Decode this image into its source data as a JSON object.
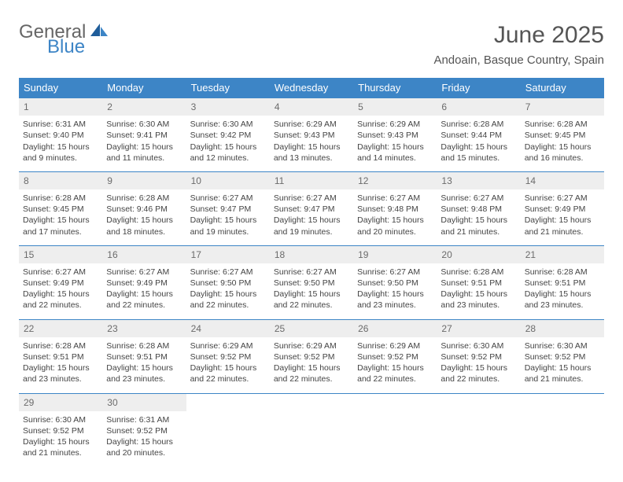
{
  "logo": {
    "word1": "General",
    "word2": "Blue"
  },
  "title": "June 2025",
  "location": "Andoain, Basque Country, Spain",
  "columns": [
    "Sunday",
    "Monday",
    "Tuesday",
    "Wednesday",
    "Thursday",
    "Friday",
    "Saturday"
  ],
  "colors": {
    "header_bg": "#3d85c6",
    "header_text": "#ffffff",
    "daynum_bg": "#eeeeee",
    "rule": "#3d85c6",
    "logo_blue": "#3d85c6",
    "logo_gray": "#666666"
  },
  "weeks": [
    [
      {
        "n": "1",
        "sr": "Sunrise: 6:31 AM",
        "ss": "Sunset: 9:40 PM",
        "d1": "Daylight: 15 hours",
        "d2": "and 9 minutes."
      },
      {
        "n": "2",
        "sr": "Sunrise: 6:30 AM",
        "ss": "Sunset: 9:41 PM",
        "d1": "Daylight: 15 hours",
        "d2": "and 11 minutes."
      },
      {
        "n": "3",
        "sr": "Sunrise: 6:30 AM",
        "ss": "Sunset: 9:42 PM",
        "d1": "Daylight: 15 hours",
        "d2": "and 12 minutes."
      },
      {
        "n": "4",
        "sr": "Sunrise: 6:29 AM",
        "ss": "Sunset: 9:43 PM",
        "d1": "Daylight: 15 hours",
        "d2": "and 13 minutes."
      },
      {
        "n": "5",
        "sr": "Sunrise: 6:29 AM",
        "ss": "Sunset: 9:43 PM",
        "d1": "Daylight: 15 hours",
        "d2": "and 14 minutes."
      },
      {
        "n": "6",
        "sr": "Sunrise: 6:28 AM",
        "ss": "Sunset: 9:44 PM",
        "d1": "Daylight: 15 hours",
        "d2": "and 15 minutes."
      },
      {
        "n": "7",
        "sr": "Sunrise: 6:28 AM",
        "ss": "Sunset: 9:45 PM",
        "d1": "Daylight: 15 hours",
        "d2": "and 16 minutes."
      }
    ],
    [
      {
        "n": "8",
        "sr": "Sunrise: 6:28 AM",
        "ss": "Sunset: 9:45 PM",
        "d1": "Daylight: 15 hours",
        "d2": "and 17 minutes."
      },
      {
        "n": "9",
        "sr": "Sunrise: 6:28 AM",
        "ss": "Sunset: 9:46 PM",
        "d1": "Daylight: 15 hours",
        "d2": "and 18 minutes."
      },
      {
        "n": "10",
        "sr": "Sunrise: 6:27 AM",
        "ss": "Sunset: 9:47 PM",
        "d1": "Daylight: 15 hours",
        "d2": "and 19 minutes."
      },
      {
        "n": "11",
        "sr": "Sunrise: 6:27 AM",
        "ss": "Sunset: 9:47 PM",
        "d1": "Daylight: 15 hours",
        "d2": "and 19 minutes."
      },
      {
        "n": "12",
        "sr": "Sunrise: 6:27 AM",
        "ss": "Sunset: 9:48 PM",
        "d1": "Daylight: 15 hours",
        "d2": "and 20 minutes."
      },
      {
        "n": "13",
        "sr": "Sunrise: 6:27 AM",
        "ss": "Sunset: 9:48 PM",
        "d1": "Daylight: 15 hours",
        "d2": "and 21 minutes."
      },
      {
        "n": "14",
        "sr": "Sunrise: 6:27 AM",
        "ss": "Sunset: 9:49 PM",
        "d1": "Daylight: 15 hours",
        "d2": "and 21 minutes."
      }
    ],
    [
      {
        "n": "15",
        "sr": "Sunrise: 6:27 AM",
        "ss": "Sunset: 9:49 PM",
        "d1": "Daylight: 15 hours",
        "d2": "and 22 minutes."
      },
      {
        "n": "16",
        "sr": "Sunrise: 6:27 AM",
        "ss": "Sunset: 9:49 PM",
        "d1": "Daylight: 15 hours",
        "d2": "and 22 minutes."
      },
      {
        "n": "17",
        "sr": "Sunrise: 6:27 AM",
        "ss": "Sunset: 9:50 PM",
        "d1": "Daylight: 15 hours",
        "d2": "and 22 minutes."
      },
      {
        "n": "18",
        "sr": "Sunrise: 6:27 AM",
        "ss": "Sunset: 9:50 PM",
        "d1": "Daylight: 15 hours",
        "d2": "and 22 minutes."
      },
      {
        "n": "19",
        "sr": "Sunrise: 6:27 AM",
        "ss": "Sunset: 9:50 PM",
        "d1": "Daylight: 15 hours",
        "d2": "and 23 minutes."
      },
      {
        "n": "20",
        "sr": "Sunrise: 6:28 AM",
        "ss": "Sunset: 9:51 PM",
        "d1": "Daylight: 15 hours",
        "d2": "and 23 minutes."
      },
      {
        "n": "21",
        "sr": "Sunrise: 6:28 AM",
        "ss": "Sunset: 9:51 PM",
        "d1": "Daylight: 15 hours",
        "d2": "and 23 minutes."
      }
    ],
    [
      {
        "n": "22",
        "sr": "Sunrise: 6:28 AM",
        "ss": "Sunset: 9:51 PM",
        "d1": "Daylight: 15 hours",
        "d2": "and 23 minutes."
      },
      {
        "n": "23",
        "sr": "Sunrise: 6:28 AM",
        "ss": "Sunset: 9:51 PM",
        "d1": "Daylight: 15 hours",
        "d2": "and 23 minutes."
      },
      {
        "n": "24",
        "sr": "Sunrise: 6:29 AM",
        "ss": "Sunset: 9:52 PM",
        "d1": "Daylight: 15 hours",
        "d2": "and 22 minutes."
      },
      {
        "n": "25",
        "sr": "Sunrise: 6:29 AM",
        "ss": "Sunset: 9:52 PM",
        "d1": "Daylight: 15 hours",
        "d2": "and 22 minutes."
      },
      {
        "n": "26",
        "sr": "Sunrise: 6:29 AM",
        "ss": "Sunset: 9:52 PM",
        "d1": "Daylight: 15 hours",
        "d2": "and 22 minutes."
      },
      {
        "n": "27",
        "sr": "Sunrise: 6:30 AM",
        "ss": "Sunset: 9:52 PM",
        "d1": "Daylight: 15 hours",
        "d2": "and 22 minutes."
      },
      {
        "n": "28",
        "sr": "Sunrise: 6:30 AM",
        "ss": "Sunset: 9:52 PM",
        "d1": "Daylight: 15 hours",
        "d2": "and 21 minutes."
      }
    ],
    [
      {
        "n": "29",
        "sr": "Sunrise: 6:30 AM",
        "ss": "Sunset: 9:52 PM",
        "d1": "Daylight: 15 hours",
        "d2": "and 21 minutes."
      },
      {
        "n": "30",
        "sr": "Sunrise: 6:31 AM",
        "ss": "Sunset: 9:52 PM",
        "d1": "Daylight: 15 hours",
        "d2": "and 20 minutes."
      },
      null,
      null,
      null,
      null,
      null
    ]
  ]
}
